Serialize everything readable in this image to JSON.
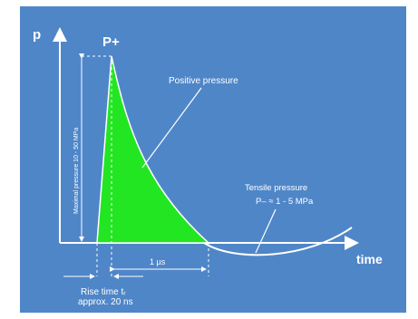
{
  "axes": {
    "y_label": "p",
    "x_label": "time"
  },
  "labels": {
    "peak": "P+",
    "positive_pressure": "Positive pressure",
    "max_pressure": "Maximal pressure 10 - 50 MPa",
    "tensile_title": "Tensile pressure",
    "tensile_value": "P– ≈ 1 - 5 MPa",
    "duration": "1 µs",
    "rise_time_line1": "Rise time tᵣ",
    "rise_time_line2": "approx. 20 ns"
  },
  "colors": {
    "background": "#4f86c8",
    "positive_fill": "#22e622",
    "lines": "#ffffff"
  }
}
